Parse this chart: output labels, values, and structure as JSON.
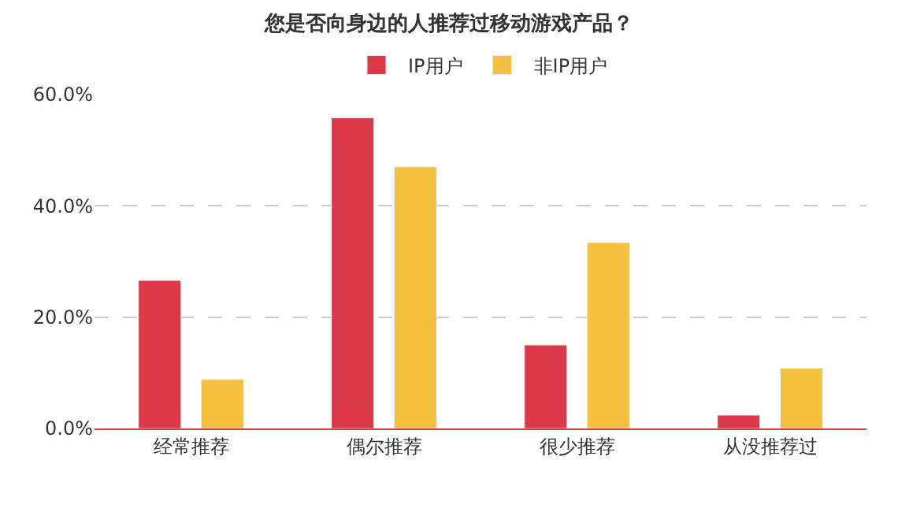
{
  "chart_data": {
    "type": "bar",
    "title": "您是否向身边的人推荐过移动游戏产品？",
    "categories": [
      "经常推荐",
      "偶尔推荐",
      "很少推荐",
      "从没推荐过"
    ],
    "series": [
      {
        "name": "IP用户",
        "color": "#dc3848",
        "values": [
          26.6,
          55.8,
          15.0,
          2.4
        ]
      },
      {
        "name": "非IP用户",
        "color": "#f4c13f",
        "values": [
          8.8,
          47.0,
          33.4,
          10.8
        ]
      }
    ],
    "ylim": [
      0,
      60
    ],
    "yticks": [
      {
        "value": 0,
        "label": "0.0%"
      },
      {
        "value": 20,
        "label": "20.0%"
      },
      {
        "value": 40,
        "label": "40.0%"
      },
      {
        "value": 60,
        "label": "60.0%"
      }
    ],
    "grid": "y",
    "legend": "top"
  }
}
